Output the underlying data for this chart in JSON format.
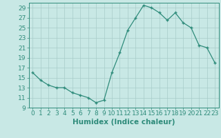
{
  "xlabel": "Humidex (Indice chaleur)",
  "ylabel": "",
  "x_values": [
    0,
    1,
    2,
    3,
    4,
    5,
    6,
    7,
    8,
    9,
    10,
    11,
    12,
    13,
    14,
    15,
    16,
    17,
    18,
    19,
    20,
    21,
    22,
    23
  ],
  "y_values": [
    16,
    14.5,
    13.5,
    13,
    13,
    12,
    11.5,
    11,
    10,
    10.5,
    16,
    20,
    24.5,
    27,
    29.5,
    29,
    28,
    26.5,
    28,
    26,
    25,
    21.5,
    21,
    18
  ],
  "line_color": "#2e8b7a",
  "marker": "+",
  "marker_color": "#2e8b7a",
  "bg_color": "#c8e8e5",
  "grid_color": "#a8ccc9",
  "ylim": [
    9,
    30
  ],
  "yticks": [
    9,
    11,
    13,
    15,
    17,
    19,
    21,
    23,
    25,
    27,
    29
  ],
  "xlim": [
    -0.5,
    23.5
  ],
  "xticks": [
    0,
    1,
    2,
    3,
    4,
    5,
    6,
    7,
    8,
    9,
    10,
    11,
    12,
    13,
    14,
    15,
    16,
    17,
    18,
    19,
    20,
    21,
    22,
    23
  ],
  "tick_fontsize": 6.5,
  "label_fontsize": 7.5
}
